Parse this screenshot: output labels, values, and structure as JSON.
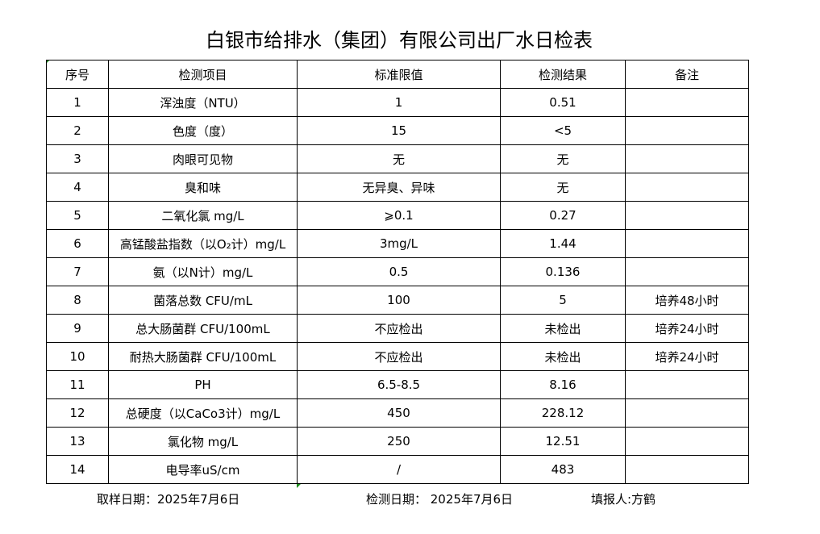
{
  "title": "白银市给排水（集团）有限公司出厂水日检表",
  "headers": [
    "序号",
    "检测项目",
    "标准限值",
    "检测结果",
    "备注"
  ],
  "rows": [
    {
      "no": "1",
      "item": "浑浊度（NTU）",
      "limit": "1",
      "result": "0.51",
      "note": ""
    },
    {
      "no": "2",
      "item": "色度（度）",
      "limit": "15",
      "result": "<5",
      "note": ""
    },
    {
      "no": "3",
      "item": "肉眼可见物",
      "limit": "无",
      "result": "无",
      "note": ""
    },
    {
      "no": "4",
      "item": "臭和味",
      "limit": "无异臭、异味",
      "result": "无",
      "note": ""
    },
    {
      "no": "5",
      "item": "二氧化氯 mg/L",
      "limit": "⩾0.1",
      "result": "0.27",
      "note": ""
    },
    {
      "no": "6",
      "item": "高锰酸盐指数（以O₂计）mg/L",
      "limit": "3mg/L",
      "result": "1.44",
      "note": ""
    },
    {
      "no": "7",
      "item": "氨（以N计）mg/L",
      "limit": "0.5",
      "result": "0.136",
      "note": ""
    },
    {
      "no": "8",
      "item": "菌落总数 CFU/mL",
      "limit": "100",
      "result": "5",
      "note": "培养48小时"
    },
    {
      "no": "9",
      "item": "总大肠菌群 CFU/100mL",
      "limit": "不应检出",
      "result": "未检出",
      "note": "培养24小时"
    },
    {
      "no": "10",
      "item": "耐热大肠菌群 CFU/100mL",
      "limit": "不应检出",
      "result": "未检出",
      "note": "培养24小时"
    },
    {
      "no": "11",
      "item": "PH",
      "limit": "6.5-8.5",
      "result": "8.16",
      "note": ""
    },
    {
      "no": "12",
      "item": "总硬度（以CaCo3计）mg/L",
      "limit": "450",
      "result": "228.12",
      "note": ""
    },
    {
      "no": "13",
      "item": "氯化物 mg/L",
      "limit": "250",
      "result": "12.51",
      "note": ""
    },
    {
      "no": "14",
      "item": "电导率uS/cm",
      "limit": "/",
      "result": "483",
      "note": ""
    }
  ],
  "footer": {
    "sample_date": "取样日期：2025年7月6日",
    "test_date": "检测日期： 2025年7月6日",
    "reporter": "填报人:方鹤"
  }
}
